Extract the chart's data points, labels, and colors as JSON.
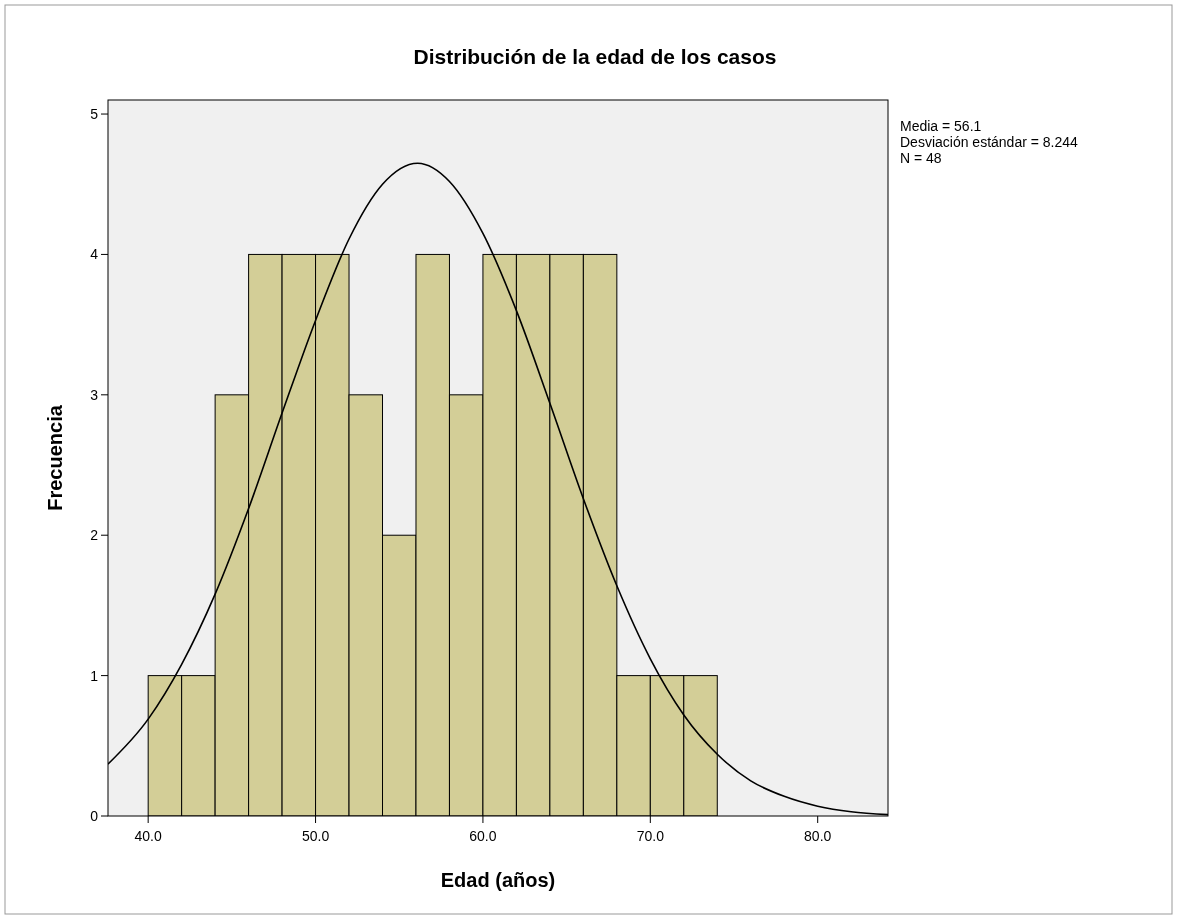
{
  "chart_data": {
    "type": "histogram",
    "title": "Distribución de la edad de los casos",
    "xlabel": "Edad (años)",
    "ylabel": "Frecuencia",
    "bins": [
      40,
      42,
      44,
      46,
      48,
      50,
      52,
      54,
      56,
      58,
      60,
      62,
      64,
      66,
      68,
      70,
      72,
      74
    ],
    "values": [
      1,
      1,
      3,
      4,
      4,
      4,
      3,
      2,
      4,
      3,
      4,
      4,
      4,
      4,
      1,
      1,
      1
    ],
    "color": "#d3ce97",
    "series": [
      {
        "type": "line",
        "color": "#000000",
        "x": [
          37.6,
          40,
          42,
          44,
          46,
          48,
          50,
          52,
          54,
          56.1,
          58,
          60,
          62,
          64,
          66,
          68,
          70,
          72,
          74,
          76,
          78,
          80,
          82,
          84.2
        ],
        "values": [
          0.37,
          0.69,
          1.08,
          1.58,
          2.19,
          2.87,
          3.53,
          4.11,
          4.5,
          4.65,
          4.52,
          4.15,
          3.6,
          2.94,
          2.26,
          1.64,
          1.12,
          0.72,
          0.44,
          0.25,
          0.14,
          0.07,
          0.03,
          0.01
        ]
      }
    ],
    "xlim": [
      37.6,
      84.2
    ],
    "ylim": [
      0,
      5.1
    ],
    "xticks": [
      {
        "value": 40,
        "label": "40.0"
      },
      {
        "value": 50,
        "label": "50.0"
      },
      {
        "value": 60,
        "label": "60.0"
      },
      {
        "value": 70,
        "label": "70.0"
      },
      {
        "value": 80,
        "label": "80.0"
      }
    ],
    "yticks": [
      0,
      1,
      2,
      3,
      4,
      5
    ],
    "grid": false,
    "annotations": [
      "Media = 56.1",
      "Desviación estándar = 8.244",
      "N = 48"
    ]
  }
}
